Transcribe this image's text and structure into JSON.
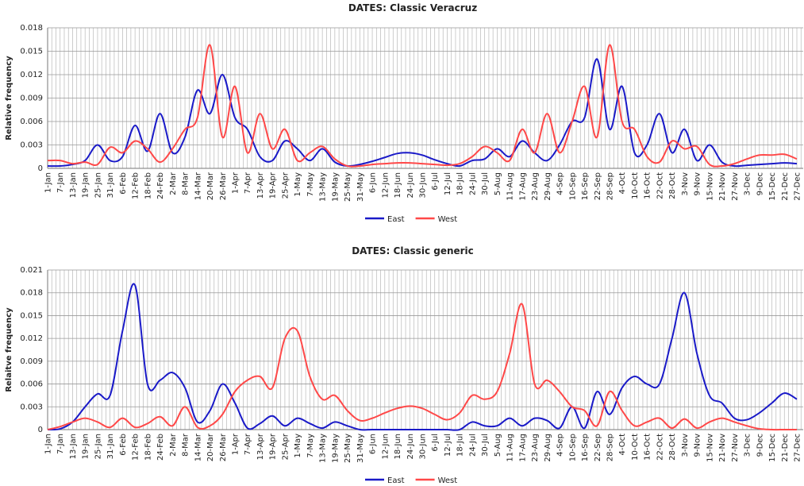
{
  "chart_data": [
    {
      "type": "line",
      "title": "DATES: Classic Veracruz",
      "y_label": "Relative frequency",
      "categories": [
        "1-Jan",
        "7-Jan",
        "13-Jan",
        "19-Jan",
        "25-Jan",
        "31-Jan",
        "6-Feb",
        "12-Feb",
        "18-Feb",
        "24-Feb",
        "2-Mar",
        "8-Mar",
        "14-Mar",
        "20-Mar",
        "26-Mar",
        "1-Apr",
        "7-Apr",
        "13-Apr",
        "19-Apr",
        "25-Apr",
        "1-May",
        "7-May",
        "13-May",
        "19-May",
        "25-May",
        "31-May",
        "6-Jun",
        "12-Jun",
        "18-Jun",
        "24-Jun",
        "30-Jun",
        "6-Jul",
        "12-Jul",
        "18-Jul",
        "24-Jul",
        "30-Jul",
        "5-Aug",
        "11-Aug",
        "17-Aug",
        "23-Aug",
        "29-Aug",
        "4-Sep",
        "10-Sep",
        "16-Sep",
        "22-Sep",
        "28-Sep",
        "4-Oct",
        "10-Oct",
        "16-Oct",
        "22-Oct",
        "28-Oct",
        "3-Nov",
        "9-Nov",
        "15-Nov",
        "21-Nov",
        "27-Nov",
        "3-Dec",
        "9-Dec",
        "15-Dec",
        "21-Dec",
        "27-Dec"
      ],
      "series": [
        {
          "name": "East",
          "color": "#1a1ac8",
          "values": [
            0.0003,
            0.0003,
            0.0005,
            0.001,
            0.003,
            0.001,
            0.0015,
            0.0055,
            0.0022,
            0.007,
            0.002,
            0.004,
            0.01,
            0.007,
            0.012,
            0.0065,
            0.005,
            0.0015,
            0.001,
            0.0035,
            0.0025,
            0.001,
            0.0025,
            0.0008,
            0.0003,
            0.0005,
            0.0009,
            0.0014,
            0.0019,
            0.002,
            0.0017,
            0.0011,
            0.0006,
            0.0003,
            0.001,
            0.0012,
            0.0025,
            0.0015,
            0.0035,
            0.002,
            0.001,
            0.003,
            0.006,
            0.0065,
            0.014,
            0.005,
            0.0105,
            0.002,
            0.003,
            0.007,
            0.002,
            0.005,
            0.001,
            0.003,
            0.0008,
            0.0003,
            0.0004,
            0.0005,
            0.0006,
            0.0007,
            0.0006
          ]
        },
        {
          "name": "West",
          "color": "#ff4848",
          "values": [
            0.001,
            0.001,
            0.0006,
            0.0008,
            0.0005,
            0.0027,
            0.002,
            0.0035,
            0.0025,
            0.0008,
            0.0025,
            0.005,
            0.0065,
            0.0158,
            0.004,
            0.0105,
            0.002,
            0.007,
            0.0025,
            0.005,
            0.001,
            0.002,
            0.0028,
            0.0012,
            0.0003,
            0.0003,
            0.0005,
            0.0006,
            0.0007,
            0.0007,
            0.0006,
            0.0005,
            0.0004,
            0.0006,
            0.0015,
            0.0028,
            0.002,
            0.001,
            0.005,
            0.002,
            0.007,
            0.002,
            0.006,
            0.0105,
            0.004,
            0.0158,
            0.006,
            0.005,
            0.0015,
            0.0008,
            0.0035,
            0.0025,
            0.0028,
            0.0005,
            0.0003,
            0.0006,
            0.0012,
            0.0017,
            0.0017,
            0.0018,
            0.0012
          ]
        }
      ],
      "ylim": [
        0,
        0.018
      ],
      "yticks": [
        0,
        0.003,
        0.006,
        0.009,
        0.012,
        0.015,
        0.018
      ],
      "grid": true,
      "legend": "bottom"
    },
    {
      "type": "line",
      "title": "DATES: Classic generic",
      "y_label": "Relaitve frequency",
      "categories": [
        "1-Jan",
        "7-Jan",
        "13-Jan",
        "19-Jan",
        "25-Jan",
        "31-Jan",
        "6-Feb",
        "12-Feb",
        "18-Feb",
        "24-Feb",
        "2-Mar",
        "8-Mar",
        "14-Mar",
        "20-Mar",
        "26-Mar",
        "1-Apr",
        "7-Apr",
        "13-Apr",
        "19-Apr",
        "25-Apr",
        "1-May",
        "7-May",
        "13-May",
        "19-May",
        "25-May",
        "31-May",
        "6-Jun",
        "12-Jun",
        "18-Jun",
        "24-Jun",
        "30-Jun",
        "6-Jul",
        "12-Jul",
        "18-Jul",
        "24-Jul",
        "30-Jul",
        "5-Aug",
        "11-Aug",
        "17-Aug",
        "23-Aug",
        "29-Aug",
        "4-Sep",
        "10-Sep",
        "16-Sep",
        "22-Sep",
        "28-Sep",
        "4-Oct",
        "10-Oct",
        "16-Oct",
        "22-Oct",
        "28-Oct",
        "3-Nov",
        "9-Nov",
        "15-Nov",
        "21-Nov",
        "27-Nov",
        "3-Dec",
        "9-Dec",
        "15-Dec",
        "21-Dec",
        "27-Dec"
      ],
      "series": [
        {
          "name": "East",
          "color": "#1a1ac8",
          "values": [
            0,
            0.0001,
            0.001,
            0.003,
            0.0047,
            0.0045,
            0.013,
            0.019,
            0.006,
            0.0065,
            0.0075,
            0.0055,
            0.001,
            0.0025,
            0.006,
            0.0035,
            0.0002,
            0.0008,
            0.0018,
            0.0005,
            0.0015,
            0.0008,
            0.0002,
            0.001,
            0.0005,
            0,
            0,
            0,
            0,
            0,
            0,
            0,
            0,
            0,
            0.001,
            0.0005,
            0.0005,
            0.0015,
            0.0005,
            0.0015,
            0.0012,
            0.0002,
            0.003,
            0.0002,
            0.005,
            0.002,
            0.0055,
            0.007,
            0.006,
            0.006,
            0.012,
            0.018,
            0.01,
            0.0045,
            0.0035,
            0.0015,
            0.0013,
            0.0022,
            0.0035,
            0.0048,
            0.004
          ]
        },
        {
          "name": "West",
          "color": "#ff4848",
          "values": [
            0,
            0.0004,
            0.001,
            0.0015,
            0.001,
            0.0003,
            0.0015,
            0.0003,
            0.0008,
            0.0017,
            0.0005,
            0.003,
            0.0003,
            0.0005,
            0.002,
            0.005,
            0.0065,
            0.007,
            0.0055,
            0.012,
            0.013,
            0.007,
            0.004,
            0.0045,
            0.0025,
            0.0012,
            0.0015,
            0.0022,
            0.0028,
            0.0031,
            0.0028,
            0.002,
            0.0013,
            0.0022,
            0.0045,
            0.004,
            0.005,
            0.01,
            0.0165,
            0.006,
            0.0065,
            0.005,
            0.003,
            0.0025,
            0.0005,
            0.005,
            0.0025,
            0.0005,
            0.001,
            0.0015,
            0.0002,
            0.0014,
            0.0002,
            0.001,
            0.0015,
            0.001,
            0.0005,
            0.0001,
            0,
            0,
            0
          ]
        }
      ],
      "ylim": [
        0,
        0.021
      ],
      "yticks": [
        0,
        0.003,
        0.006,
        0.009,
        0.012,
        0.015,
        0.018,
        0.021
      ],
      "grid": true,
      "legend": "bottom"
    }
  ]
}
